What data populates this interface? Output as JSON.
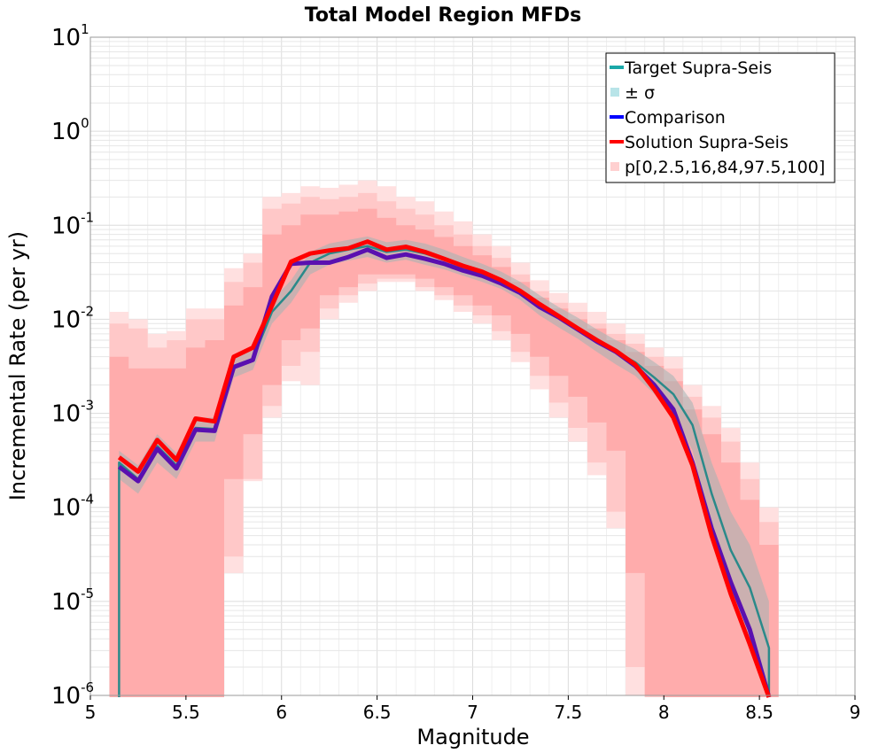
{
  "chart_data": {
    "type": "line",
    "title": "Total Model Region MFDs",
    "xlabel": "Magnitude",
    "ylabel": "Incremental Rate (per yr)",
    "xlim": [
      5,
      9
    ],
    "ylim": [
      1e-06,
      10
    ],
    "yscale": "log",
    "grid": true,
    "legend_position": "top-right",
    "x_ticks": [
      "5",
      "5.5",
      "6",
      "6.5",
      "7",
      "7.5",
      "8",
      "8.5",
      "9"
    ],
    "x_tick_values": [
      5,
      5.5,
      6,
      6.5,
      7,
      7.5,
      8,
      8.5,
      9
    ],
    "y_ticks": [
      {
        "base": "10",
        "exp": "-6",
        "value": 1e-06
      },
      {
        "base": "10",
        "exp": "-5",
        "value": 1e-05
      },
      {
        "base": "10",
        "exp": "-4",
        "value": 0.0001
      },
      {
        "base": "10",
        "exp": "-3",
        "value": 0.001
      },
      {
        "base": "10",
        "exp": "-2",
        "value": 0.01
      },
      {
        "base": "10",
        "exp": "-1",
        "value": 0.1
      },
      {
        "base": "10",
        "exp": "0",
        "value": 1
      },
      {
        "base": "10",
        "exp": "1",
        "value": 10
      }
    ],
    "legend": [
      {
        "label": "Target Supra-Seis",
        "kind": "line",
        "color": "#1aa8a8"
      },
      {
        "label": "± σ",
        "kind": "patch",
        "color": "#b8e4e8"
      },
      {
        "label": "Comparison",
        "kind": "line",
        "color": "#0000ff"
      },
      {
        "label": "Solution Supra-Seis",
        "kind": "line",
        "color": "#ff0000"
      },
      {
        "label": "p[0,2.5,16,84,97.5,100]",
        "kind": "patch",
        "color": "#ffd0d0"
      }
    ],
    "x": [
      5.15,
      5.25,
      5.35,
      5.45,
      5.55,
      5.65,
      5.75,
      5.85,
      5.95,
      6.05,
      6.15,
      6.25,
      6.35,
      6.45,
      6.55,
      6.65,
      6.75,
      6.85,
      6.95,
      7.05,
      7.15,
      7.25,
      7.35,
      7.45,
      7.55,
      7.65,
      7.75,
      7.85,
      7.95,
      8.05,
      8.15,
      8.25,
      8.35,
      8.45,
      8.55
    ],
    "series": [
      {
        "name": "Target Supra-Seis",
        "color": "#2a8a8a",
        "values": [
          0.0003,
          0.0002,
          0.00045,
          0.00028,
          0.0007,
          0.00068,
          0.0032,
          0.0038,
          0.012,
          0.02,
          0.04,
          0.05,
          0.055,
          0.06,
          0.052,
          0.055,
          0.05,
          0.043,
          0.036,
          0.031,
          0.026,
          0.02,
          0.014,
          0.0105,
          0.008,
          0.006,
          0.0045,
          0.0035,
          0.0024,
          0.0016,
          0.00075,
          0.00014,
          3.5e-05,
          1.4e-05,
          3.2e-06
        ]
      },
      {
        "name": "Comparison",
        "color": "#5a10b0",
        "values": [
          0.00027,
          0.00019,
          0.00042,
          0.00026,
          0.00067,
          0.00065,
          0.0031,
          0.0037,
          0.0175,
          0.039,
          0.04,
          0.04,
          0.046,
          0.055,
          0.045,
          0.049,
          0.044,
          0.039,
          0.033,
          0.029,
          0.024,
          0.019,
          0.0135,
          0.0105,
          0.0078,
          0.0058,
          0.0045,
          0.0032,
          0.002,
          0.0011,
          0.0003,
          6e-05,
          1.6e-05,
          5e-06,
          6e-07
        ]
      },
      {
        "name": "Solution Supra-Seis",
        "color": "#ff0000",
        "values": [
          0.00034,
          0.00024,
          0.00052,
          0.00032,
          0.00088,
          0.00082,
          0.004,
          0.005,
          0.014,
          0.041,
          0.05,
          0.054,
          0.057,
          0.067,
          0.055,
          0.059,
          0.052,
          0.044,
          0.037,
          0.032,
          0.026,
          0.02,
          0.0145,
          0.0108,
          0.008,
          0.006,
          0.0046,
          0.0033,
          0.0018,
          0.0009,
          0.00028,
          5e-05,
          1.2e-05,
          3.5e-06,
          6e-07
        ]
      }
    ],
    "target_sigma_band": {
      "lower": [
        0.0002,
        0.00014,
        0.0003,
        0.0002,
        0.0005,
        0.0005,
        0.0024,
        0.0029,
        0.009,
        0.015,
        0.03,
        0.038,
        0.042,
        0.046,
        0.04,
        0.043,
        0.038,
        0.034,
        0.029,
        0.025,
        0.021,
        0.016,
        0.011,
        0.0082,
        0.0062,
        0.0045,
        0.0033,
        0.0025,
        0.0016,
        0.001,
        0.0004,
        6e-05,
        1.2e-05,
        4e-06,
        8e-07
      ],
      "upper": [
        0.0004,
        0.00028,
        0.0006,
        0.00038,
        0.0009,
        0.0009,
        0.0042,
        0.005,
        0.016,
        0.026,
        0.052,
        0.064,
        0.07,
        0.076,
        0.066,
        0.07,
        0.064,
        0.055,
        0.046,
        0.039,
        0.032,
        0.025,
        0.018,
        0.0135,
        0.0104,
        0.0078,
        0.006,
        0.0048,
        0.0035,
        0.0025,
        0.0013,
        0.0003,
        9e-05,
        4e-05,
        1e-05
      ]
    },
    "percentile_bands": [
      {
        "name": "p0-p100",
        "lower": [
          1e-07,
          1e-07,
          1e-07,
          1e-07,
          1e-07,
          1e-07,
          2e-05,
          0.00019,
          0.0009,
          0.0022,
          0.002,
          0.01,
          0.015,
          0.02,
          0.025,
          0.025,
          0.02,
          0.016,
          0.012,
          0.009,
          0.006,
          0.0035,
          0.0018,
          0.0009,
          0.0005,
          0.00022,
          6e-05,
          1e-06,
          1e-07,
          1e-07,
          1e-07,
          1e-07,
          1e-07,
          1e-07,
          1e-07
        ],
        "upper": [
          0.012,
          0.01,
          0.007,
          0.0075,
          0.013,
          0.013,
          0.035,
          0.05,
          0.2,
          0.22,
          0.26,
          0.25,
          0.27,
          0.3,
          0.26,
          0.2,
          0.18,
          0.14,
          0.11,
          0.08,
          0.06,
          0.04,
          0.026,
          0.019,
          0.015,
          0.012,
          0.009,
          0.007,
          0.005,
          0.004,
          0.002,
          0.0012,
          0.0007,
          0.0003,
          0.0001
        ]
      },
      {
        "name": "p2.5-p97.5",
        "lower": [
          1e-07,
          1e-07,
          1e-07,
          1e-07,
          1e-07,
          1e-07,
          3e-05,
          0.0002,
          0.0012,
          0.0032,
          0.0045,
          0.013,
          0.018,
          0.024,
          0.027,
          0.027,
          0.022,
          0.018,
          0.014,
          0.011,
          0.0075,
          0.0045,
          0.0025,
          0.0013,
          0.0007,
          0.0003,
          9e-05,
          2e-06,
          1e-07,
          1e-07,
          1e-07,
          1e-07,
          1e-07,
          1e-07,
          1e-07
        ],
        "upper": [
          0.009,
          0.008,
          0.005,
          0.006,
          0.01,
          0.01,
          0.025,
          0.04,
          0.15,
          0.17,
          0.2,
          0.19,
          0.2,
          0.22,
          0.18,
          0.15,
          0.13,
          0.1,
          0.08,
          0.06,
          0.045,
          0.03,
          0.02,
          0.015,
          0.012,
          0.009,
          0.007,
          0.0055,
          0.004,
          0.003,
          0.0015,
          0.0009,
          0.0005,
          0.0002,
          7e-05
        ]
      },
      {
        "name": "p16-p84",
        "lower": [
          1e-07,
          1e-07,
          1e-07,
          1e-07,
          1e-07,
          1e-07,
          0.0002,
          0.0006,
          0.002,
          0.006,
          0.008,
          0.018,
          0.022,
          0.03,
          0.03,
          0.03,
          0.027,
          0.022,
          0.018,
          0.014,
          0.011,
          0.007,
          0.004,
          0.0025,
          0.0015,
          0.0008,
          0.0004,
          2e-05,
          1e-06,
          1e-07,
          1e-07,
          1e-07,
          1e-07,
          1e-07,
          1e-07
        ],
        "upper": [
          0.004,
          0.003,
          0.003,
          0.003,
          0.005,
          0.006,
          0.014,
          0.022,
          0.08,
          0.1,
          0.13,
          0.13,
          0.14,
          0.15,
          0.12,
          0.1,
          0.09,
          0.075,
          0.06,
          0.048,
          0.036,
          0.025,
          0.017,
          0.013,
          0.01,
          0.008,
          0.006,
          0.0045,
          0.0032,
          0.0022,
          0.0011,
          0.0006,
          0.0003,
          0.00012,
          4e-05
        ]
      }
    ]
  },
  "colors": {
    "band_outer": "#ffe0e0",
    "band_mid": "#ffc8c8",
    "band_inner": "#ffacac",
    "sigma_band": "#a0b4b4",
    "grid": "#e6e6e6",
    "axes": "#000000"
  }
}
